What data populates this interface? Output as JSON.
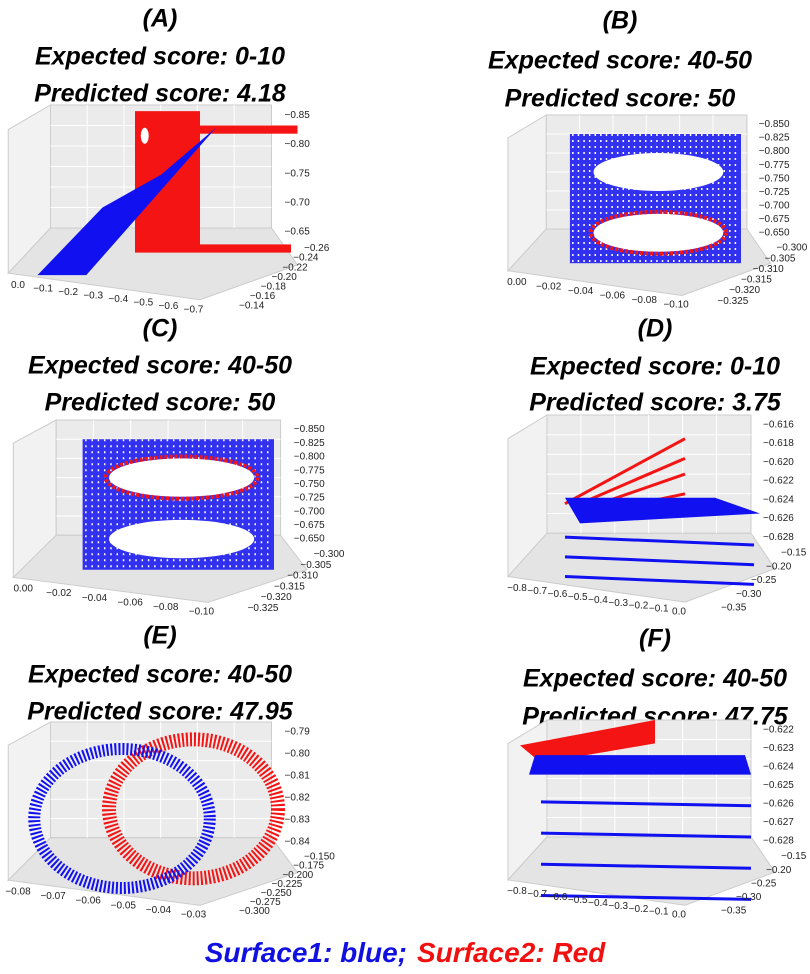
{
  "panels": [
    {
      "label": "(A)",
      "expected": "Expected score: 0-10",
      "predicted": "Predicted score: 4.18",
      "x_ticks": [
        "0.0",
        "−0.1",
        "−0.2",
        "−0.3",
        "−0.4",
        "−0.5",
        "−0.6",
        "−0.7"
      ],
      "y_ticks": [
        "−0.26",
        "−0.24",
        "−0.22",
        "−0.20",
        "−0.18",
        "−0.16",
        "−0.14"
      ],
      "z_ticks": [
        "−0.85",
        "−0.80",
        "−0.75",
        "−0.70",
        "−0.65"
      ]
    },
    {
      "label": "(B)",
      "expected": "Expected score: 40-50",
      "predicted": "Predicted score: 50",
      "x_ticks": [
        "0.00",
        "−0.02",
        "−0.04",
        "−0.06",
        "−0.08",
        "−0.10"
      ],
      "y_ticks": [
        "−0.300",
        "−0.305",
        "−0.310",
        "−0.315",
        "−0.320",
        "−0.325"
      ],
      "z_ticks": [
        "−0.850",
        "−0.825",
        "−0.800",
        "−0.775",
        "−0.750",
        "−0.725",
        "−0.700",
        "−0.675",
        "−0.650"
      ]
    },
    {
      "label": "(C)",
      "expected": "Expected score: 40-50",
      "predicted": "Predicted score: 50",
      "x_ticks": [
        "0.00",
        "−0.02",
        "−0.04",
        "−0.06",
        "−0.08",
        "−0.10"
      ],
      "y_ticks": [
        "−0.300",
        "−0.305",
        "−0.310",
        "−0.315",
        "−0.320",
        "−0.325"
      ],
      "z_ticks": [
        "−0.850",
        "−0.825",
        "−0.800",
        "−0.775",
        "−0.750",
        "−0.725",
        "−0.700",
        "−0.675",
        "−0.650"
      ]
    },
    {
      "label": "(D)",
      "expected": "Expected score: 0-10",
      "predicted": "Predicted score: 3.75",
      "x_ticks": [
        "−0.8",
        "−0.7",
        "−0.6",
        "−0.5",
        "−0.4",
        "−0.3",
        "−0.2",
        "−0.1",
        "0.0"
      ],
      "y_ticks": [
        "−0.15",
        "−0.20",
        "−0.25",
        "−0.30",
        "−0.35"
      ],
      "z_ticks": [
        "−0.616",
        "−0.618",
        "−0.620",
        "−0.622",
        "−0.624",
        "−0.626",
        "−0.628"
      ]
    },
    {
      "label": "(E)",
      "expected": "Expected score: 40-50",
      "predicted": "Predicted score: 47.95",
      "x_ticks": [
        "−0.08",
        "−0.07",
        "−0.06",
        "−0.05",
        "−0.04",
        "−0.03"
      ],
      "y_ticks": [
        "−0.150",
        "−0.175",
        "−0.200",
        "−0.225",
        "−0.250",
        "−0.275",
        "−0.300"
      ],
      "z_ticks": [
        "−0.79",
        "−0.80",
        "−0.81",
        "−0.82",
        "−0.83",
        "−0.84"
      ]
    },
    {
      "label": "(F)",
      "expected": "Expected score: 40-50",
      "predicted": "Predicted score: 47.75",
      "x_ticks": [
        "−0.8",
        "−0.7",
        "−0.6",
        "−0.5",
        "−0.4",
        "−0.3",
        "−0.2",
        "−0.1",
        "0.0"
      ],
      "y_ticks": [
        "−0.15",
        "−0.20",
        "−0.25",
        "−0.30",
        "−0.35"
      ],
      "z_ticks": [
        "−0.622",
        "−0.623",
        "−0.624",
        "−0.625",
        "−0.626",
        "−0.627",
        "−0.628"
      ]
    }
  ],
  "legend": {
    "surface1": "Surface1: blue;",
    "surface2": "Surface2: Red"
  }
}
